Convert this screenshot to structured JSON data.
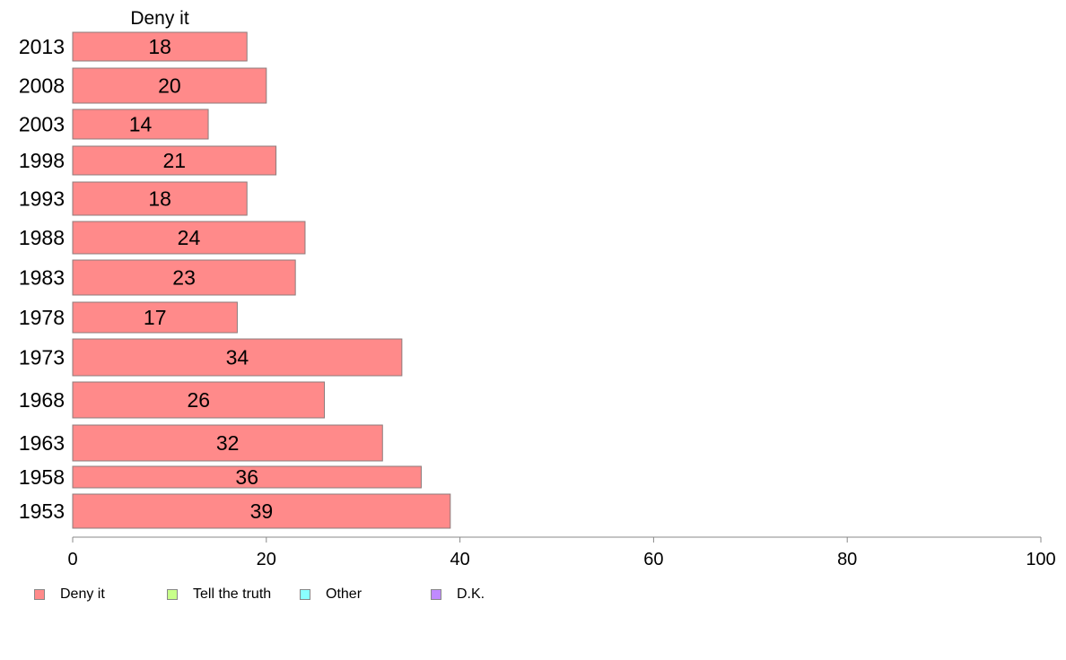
{
  "chart_data": {
    "type": "bar",
    "orientation": "horizontal",
    "column_title": "Deny it",
    "categories": [
      "2013",
      "2008",
      "2003",
      "1998",
      "1993",
      "1988",
      "1983",
      "1978",
      "1973",
      "1968",
      "1963",
      "1958",
      "1953"
    ],
    "series": [
      {
        "name": "Deny it",
        "color": "#ff8a8a",
        "values": [
          18,
          20,
          14,
          21,
          18,
          24,
          23,
          17,
          34,
          26,
          32,
          36,
          39
        ],
        "labels": [
          "18",
          "20",
          "14",
          "21",
          "18",
          "24",
          "23",
          "17",
          "34",
          "26",
          "32",
          "36",
          "39"
        ]
      }
    ],
    "xlim": [
      0,
      100
    ],
    "xticks": [
      "0",
      "20",
      "40",
      "60",
      "80",
      "100"
    ],
    "grid": false,
    "legend": [
      {
        "label": "Deny it",
        "color": "#ff8a8a"
      },
      {
        "label": "Tell the truth",
        "color": "#c8ff8a"
      },
      {
        "label": "Other",
        "color": "#8affff"
      },
      {
        "label": "D.K.",
        "color": "#c08aff"
      }
    ],
    "legend_position": "bottom-left"
  }
}
